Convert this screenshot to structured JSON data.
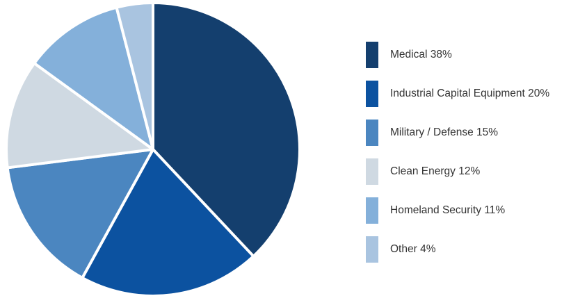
{
  "chart_data": {
    "type": "pie",
    "title": "",
    "legend_position": "right",
    "slices": [
      {
        "label": "Medical 38%",
        "value": 38,
        "color": "#143f6e"
      },
      {
        "label": "Industrial Capital Equipment 20%",
        "value": 20,
        "color": "#0c52a0"
      },
      {
        "label": "Military / Defense 15%",
        "value": 15,
        "color": "#4b86c0"
      },
      {
        "label": "Clean Energy 12%",
        "value": 12,
        "color": "#cfd9e2"
      },
      {
        "label": "Homeland Security 11%",
        "value": 11,
        "color": "#84b0da"
      },
      {
        "label": "Other 4%",
        "value": 4,
        "color": "#a9c4e0"
      }
    ]
  }
}
